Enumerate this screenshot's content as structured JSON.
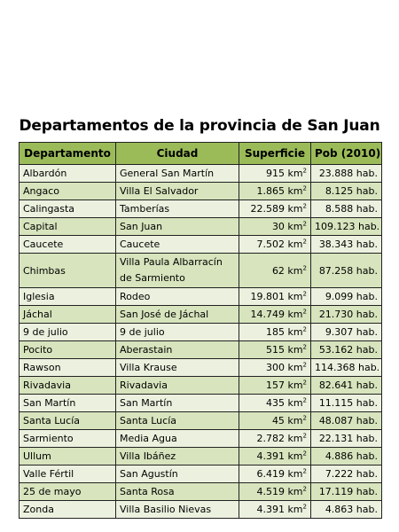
{
  "title": "Departamentos de la provincia de San Juan",
  "headers": [
    "Departamento",
    "Ciudad",
    "Superficie",
    "Pob (2010)"
  ],
  "rows": [
    {
      "departamento": "Albardón",
      "ciudad": "General San Martín",
      "superficie": "915 km",
      "pob": "23.888 hab."
    },
    {
      "departamento": "Angaco",
      "ciudad": "Villa El Salvador",
      "superficie": "1.865 km",
      "pob": "8.125 hab."
    },
    {
      "departamento": "Calingasta",
      "ciudad": "Tamberías",
      "superficie": "22.589 km",
      "pob": "8.588 hab."
    },
    {
      "departamento": "Capital",
      "ciudad": "San Juan",
      "superficie": "30 km",
      "pob": "109.123 hab."
    },
    {
      "departamento": "Caucete",
      "ciudad": "Caucete",
      "superficie": "7.502 km",
      "pob": "38.343 hab."
    },
    {
      "departamento": "Chimbas",
      "ciudad": "Villa Paula Albarracín de Sarmiento",
      "superficie": "62 km",
      "pob": "87.258 hab."
    },
    {
      "departamento": "Iglesia",
      "ciudad": "Rodeo",
      "superficie": "19.801 km",
      "pob": "9.099 hab."
    },
    {
      "departamento": "Jáchal",
      "ciudad": "San José de Jáchal",
      "superficie": "14.749 km",
      "pob": "21.730 hab."
    },
    {
      "departamento": "9 de julio",
      "ciudad": "9 de julio",
      "superficie": "185 km",
      "pob": "9.307 hab."
    },
    {
      "departamento": "Pocito",
      "ciudad": "Aberastain",
      "superficie": "515 km",
      "pob": "53.162 hab."
    },
    {
      "departamento": "Rawson",
      "ciudad": "Villa Krause",
      "superficie": "300 km",
      "pob": "114.368 hab."
    },
    {
      "departamento": "Rivadavia",
      "ciudad": "Rivadavia",
      "superficie": "157 km",
      "pob": "82.641 hab."
    },
    {
      "departamento": "San Martín",
      "ciudad": "San Martín",
      "superficie": "435 km",
      "pob": "11.115 hab."
    },
    {
      "departamento": "Santa Lucía",
      "ciudad": "Santa Lucía",
      "superficie": "45 km",
      "pob": "48.087 hab."
    },
    {
      "departamento": "Sarmiento",
      "ciudad": "Media Agua",
      "superficie": "2.782 km",
      "pob": "22.131 hab."
    },
    {
      "departamento": "Ullum",
      "ciudad": "Villa Ibáñez",
      "superficie": "4.391 km",
      "pob": "4.886 hab."
    },
    {
      "departamento": "Valle Fértil",
      "ciudad": "San Agustín",
      "superficie": "6.419 km",
      "pob": "7.222 hab."
    },
    {
      "departamento": "25 de mayo",
      "ciudad": "Santa Rosa",
      "superficie": "4.519 km",
      "pob": "17.119 hab."
    },
    {
      "departamento": "Zonda",
      "ciudad": "Villa Basilio Nievas",
      "superficie": "4.391 km",
      "pob": "4.863 hab."
    }
  ],
  "unit_superscript": "2"
}
